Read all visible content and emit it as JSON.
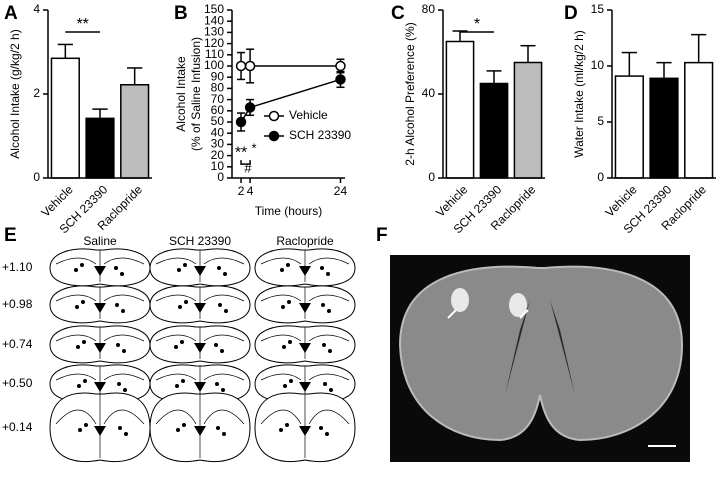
{
  "chart_data": [
    {
      "type": "bar",
      "label": "A",
      "ylabel": "Alcohol Intake (g/kg/2 h)",
      "categories": [
        "Vehicle",
        "SCH 23390",
        "Raclopride"
      ],
      "values": [
        2.85,
        1.42,
        2.22
      ],
      "errors": [
        0.33,
        0.22,
        0.4
      ],
      "colors": [
        "#ffffff",
        "#000000",
        "#bdbdbd"
      ],
      "ylim": [
        0,
        4
      ],
      "yticks": [
        0,
        2,
        4
      ],
      "annotations": [
        "**"
      ]
    },
    {
      "type": "line",
      "label": "B",
      "ylabel": [
        "Alcohol Intake",
        "(% of Saline Infusion)"
      ],
      "xlabel": "Time (hours)",
      "x": [
        2,
        4,
        24
      ],
      "xlim": [
        0,
        25
      ],
      "xticks": [
        2,
        4,
        24
      ],
      "ylim": [
        0,
        150
      ],
      "yticks": [
        0,
        10,
        20,
        30,
        40,
        50,
        60,
        70,
        80,
        90,
        100,
        110,
        120,
        130,
        140,
        150
      ],
      "series": [
        {
          "name": "Vehicle",
          "color": "#ffffff",
          "values": [
            100,
            100,
            100
          ],
          "errors": [
            12,
            15,
            6
          ]
        },
        {
          "name": "SCH 23390",
          "color": "#000000",
          "values": [
            50,
            63,
            88
          ],
          "errors": [
            8,
            7,
            7
          ]
        }
      ],
      "legend": "lower right",
      "annotations": [
        "**",
        "*",
        "#"
      ]
    },
    {
      "type": "bar",
      "label": "C",
      "ylabel": "2-h Alcohol Preference (%)",
      "categories": [
        "Vehicle",
        "SCH 23390",
        "Raclopride"
      ],
      "values": [
        65,
        45,
        55
      ],
      "errors": [
        5,
        6,
        8
      ],
      "colors": [
        "#ffffff",
        "#000000",
        "#bdbdbd"
      ],
      "ylim": [
        0,
        80
      ],
      "yticks": [
        0,
        40,
        80
      ],
      "annotations": [
        "*"
      ]
    },
    {
      "type": "bar",
      "label": "D",
      "ylabel": "Water Intake (ml/kg/2 h)",
      "categories": [
        "Vehicle",
        "SCH 23390",
        "Raclopride"
      ],
      "values": [
        9.1,
        8.9,
        10.3
      ],
      "errors": [
        2.1,
        1.4,
        2.5
      ],
      "colors": [
        "#ffffff",
        "#000000",
        "#ffffff"
      ],
      "ylim": [
        0,
        15
      ],
      "yticks": [
        0,
        5,
        10,
        15
      ],
      "annotations": []
    }
  ],
  "atlas": {
    "label": "E",
    "columns": [
      "Saline",
      "SCH 23390",
      "Raclopride"
    ],
    "levels": [
      "+1.10",
      "+0.98",
      "+0.74",
      "+0.50",
      "+0.14"
    ]
  },
  "histology": {
    "label": "F"
  }
}
